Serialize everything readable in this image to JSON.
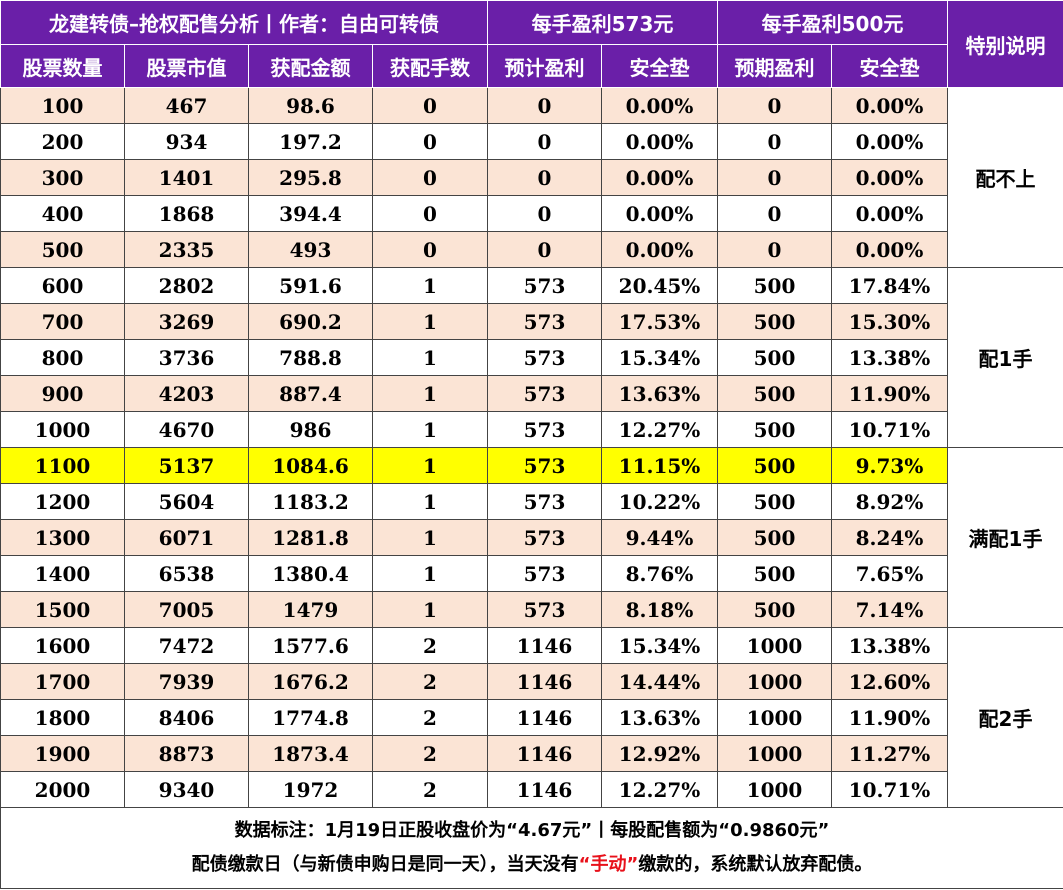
{
  "header": {
    "title": "龙建转债–抢权配售分析丨作者：自由可转债",
    "group_573": "每手盈利573元",
    "group_500": "每手盈利500元",
    "special_note": "特别说明",
    "columns": [
      "股票数量",
      "股票市值",
      "获配金额",
      "获配手数",
      "预计盈利",
      "安全垫",
      "预期盈利",
      "安全垫"
    ]
  },
  "rows": [
    [
      "100",
      "467",
      "98.6",
      "0",
      "0",
      "0.00%",
      "0",
      "0.00%"
    ],
    [
      "200",
      "934",
      "197.2",
      "0",
      "0",
      "0.00%",
      "0",
      "0.00%"
    ],
    [
      "300",
      "1401",
      "295.8",
      "0",
      "0",
      "0.00%",
      "0",
      "0.00%"
    ],
    [
      "400",
      "1868",
      "394.4",
      "0",
      "0",
      "0.00%",
      "0",
      "0.00%"
    ],
    [
      "500",
      "2335",
      "493",
      "0",
      "0",
      "0.00%",
      "0",
      "0.00%"
    ],
    [
      "600",
      "2802",
      "591.6",
      "1",
      "573",
      "20.45%",
      "500",
      "17.84%"
    ],
    [
      "700",
      "3269",
      "690.2",
      "1",
      "573",
      "17.53%",
      "500",
      "15.30%"
    ],
    [
      "800",
      "3736",
      "788.8",
      "1",
      "573",
      "15.34%",
      "500",
      "13.38%"
    ],
    [
      "900",
      "4203",
      "887.4",
      "1",
      "573",
      "13.63%",
      "500",
      "11.90%"
    ],
    [
      "1000",
      "4670",
      "986",
      "1",
      "573",
      "12.27%",
      "500",
      "10.71%"
    ],
    [
      "1100",
      "5137",
      "1084.6",
      "1",
      "573",
      "11.15%",
      "500",
      "9.73%"
    ],
    [
      "1200",
      "5604",
      "1183.2",
      "1",
      "573",
      "10.22%",
      "500",
      "8.92%"
    ],
    [
      "1300",
      "6071",
      "1281.8",
      "1",
      "573",
      "9.44%",
      "500",
      "8.24%"
    ],
    [
      "1400",
      "6538",
      "1380.4",
      "1",
      "573",
      "8.76%",
      "500",
      "7.65%"
    ],
    [
      "1500",
      "7005",
      "1479",
      "1",
      "573",
      "8.18%",
      "500",
      "7.14%"
    ],
    [
      "1600",
      "7472",
      "1577.6",
      "2",
      "1146",
      "15.34%",
      "1000",
      "13.38%"
    ],
    [
      "1700",
      "7939",
      "1676.2",
      "2",
      "1146",
      "14.44%",
      "1000",
      "12.60%"
    ],
    [
      "1800",
      "8406",
      "1774.8",
      "2",
      "1146",
      "13.63%",
      "1000",
      "11.90%"
    ],
    [
      "1900",
      "8873",
      "1873.4",
      "2",
      "1146",
      "12.92%",
      "1000",
      "11.27%"
    ],
    [
      "2000",
      "9340",
      "1972",
      "2",
      "1146",
      "12.27%",
      "1000",
      "10.71%"
    ]
  ],
  "highlight_row": "1100",
  "notes": [
    {
      "label": "配不上",
      "span": 5
    },
    {
      "label": "配1手",
      "span": 5
    },
    {
      "label": "满配1手",
      "span": 5
    },
    {
      "label": "配2手",
      "span": 5
    }
  ],
  "footer": {
    "line1": "数据标注：1月19日正股收盘价为“4.67元”丨每股配售额为“0.9860元”",
    "line2_pre": "配债缴款日（与新债申购日是同一天），当天没有",
    "line2_red": "“手动”",
    "line2_post": "缴款的，系统默认放弃配债。"
  },
  "colors": {
    "header_bg": "#6a1fa8",
    "row_alt": "#fbe4d5",
    "highlight": "#ffff00",
    "emphasis_red": "#e8101a"
  }
}
